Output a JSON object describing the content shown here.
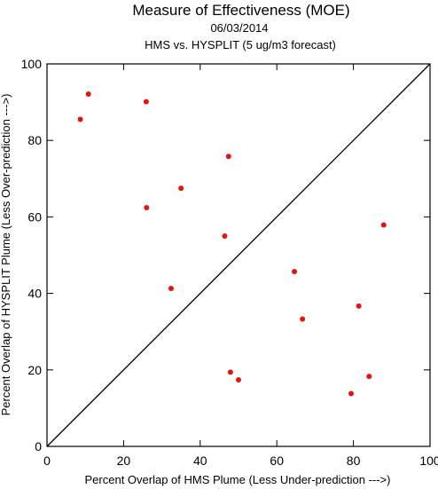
{
  "chart_data": {
    "type": "scatter",
    "title": "Measure of Effectiveness (MOE)",
    "subtitle_lines": [
      "06/03/2014",
      "HMS vs. HYSPLIT  (5 ug/m3 forecast)"
    ],
    "xlabel": "Percent Overlap of HMS Plume (Less Under-prediction --->)",
    "ylabel": "Percent Overlap of HYSPLIT Plume (Less Over-prediction --->)",
    "xlim": [
      0,
      100
    ],
    "ylim": [
      0,
      100
    ],
    "x_ticks": [
      0,
      20,
      40,
      60,
      80,
      100
    ],
    "y_ticks": [
      0,
      20,
      40,
      60,
      80,
      100
    ],
    "reference_line": {
      "from": [
        0,
        0
      ],
      "to": [
        100,
        100
      ],
      "color": "#000000"
    },
    "point_color": "#e8120c",
    "points": [
      {
        "x": 10.8,
        "y": 92.1
      },
      {
        "x": 8.7,
        "y": 85.5
      },
      {
        "x": 25.9,
        "y": 90.1
      },
      {
        "x": 47.4,
        "y": 75.8
      },
      {
        "x": 35.0,
        "y": 67.5
      },
      {
        "x": 26.0,
        "y": 62.4
      },
      {
        "x": 46.4,
        "y": 55.0
      },
      {
        "x": 87.9,
        "y": 57.9
      },
      {
        "x": 64.6,
        "y": 45.7
      },
      {
        "x": 32.4,
        "y": 41.3
      },
      {
        "x": 81.4,
        "y": 36.7
      },
      {
        "x": 66.7,
        "y": 33.3
      },
      {
        "x": 47.9,
        "y": 19.4
      },
      {
        "x": 50.0,
        "y": 17.4
      },
      {
        "x": 84.1,
        "y": 18.3
      },
      {
        "x": 79.4,
        "y": 13.8
      }
    ]
  }
}
